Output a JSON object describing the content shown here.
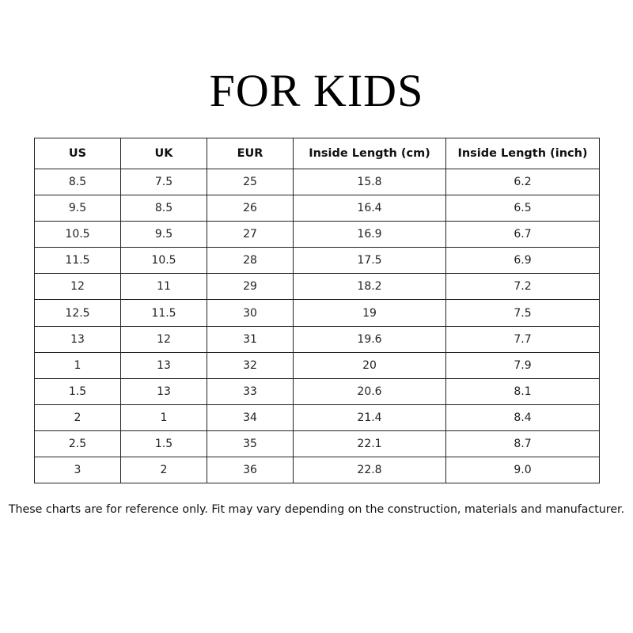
{
  "title": "FOR KIDS",
  "table": {
    "headers": [
      "US",
      "UK",
      "EUR",
      "Inside Length (cm)",
      "Inside Length (inch)"
    ],
    "rows": [
      [
        "8.5",
        "7.5",
        "25",
        "15.8",
        "6.2"
      ],
      [
        "9.5",
        "8.5",
        "26",
        "16.4",
        "6.5"
      ],
      [
        "10.5",
        "9.5",
        "27",
        "16.9",
        "6.7"
      ],
      [
        "11.5",
        "10.5",
        "28",
        "17.5",
        "6.9"
      ],
      [
        "12",
        "11",
        "29",
        "18.2",
        "7.2"
      ],
      [
        "12.5",
        "11.5",
        "30",
        "19",
        "7.5"
      ],
      [
        "13",
        "12",
        "31",
        "19.6",
        "7.7"
      ],
      [
        "1",
        "13",
        "32",
        "20",
        "7.9"
      ],
      [
        "1.5",
        "13",
        "33",
        "20.6",
        "8.1"
      ],
      [
        "2",
        "1",
        "34",
        "21.4",
        "8.4"
      ],
      [
        "2.5",
        "1.5",
        "35",
        "22.1",
        "8.7"
      ],
      [
        "3",
        "2",
        "36",
        "22.8",
        "9.0"
      ]
    ]
  },
  "note": "These charts are for reference only. Fit may vary depending on the construction, materials and manufacturer."
}
